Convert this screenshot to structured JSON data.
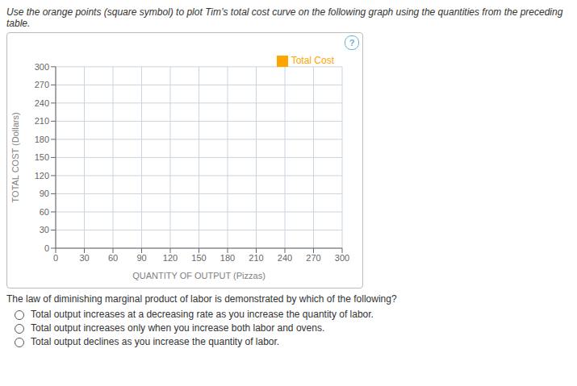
{
  "chart_data": {
    "type": "line",
    "title": "Use the orange points (square symbol) to plot Tim’s total cost curve on the following graph using the quantities from the preceding table.",
    "xlabel": "QUANTITY OF OUTPUT (Pizzas)",
    "ylabel": "TOTAL COST (Dollars)",
    "x": [],
    "series": [
      {
        "name": "Total Cost",
        "color": "#FFA500",
        "marker": "square",
        "values": []
      }
    ],
    "xlim": [
      0,
      300
    ],
    "ylim": [
      0,
      300
    ],
    "xticks": [
      0,
      30,
      60,
      90,
      120,
      150,
      180,
      210,
      240,
      270,
      300
    ],
    "yticks": [
      0,
      30,
      60,
      90,
      120,
      150,
      180,
      210,
      240,
      270,
      300
    ],
    "grid": true,
    "legend": "top right",
    "annotations": [
      "?"
    ],
    "question": "The law of diminishing marginal product of labor is demonstrated by which of the following?",
    "choices": [
      "Total output increases at a decreasing rate as you increase the quantity of labor.",
      "Total output increases only when you increase both labor and ovens.",
      "Total output declines as you increase the quantity of labor."
    ]
  }
}
